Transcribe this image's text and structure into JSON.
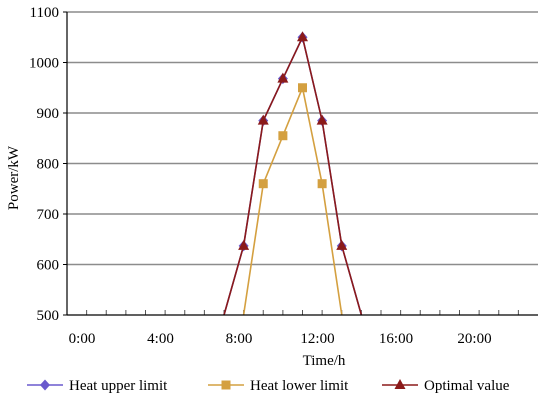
{
  "chart_data": {
    "type": "line",
    "xlabel": "Time/h",
    "ylabel": "Power/kW",
    "xlim": [
      0,
      24
    ],
    "ylim": [
      500,
      1100
    ],
    "x_ticks": [
      0,
      4,
      8,
      12,
      16,
      20
    ],
    "x_tick_labels": [
      "0:00",
      "4:00",
      "8:00",
      "12:00",
      "16:00",
      "20:00"
    ],
    "y_ticks": [
      500,
      600,
      700,
      800,
      900,
      1000,
      1100
    ],
    "y_tick_labels": [
      "500",
      "600",
      "700",
      "800",
      "900",
      "1000",
      "1100"
    ],
    "grid": "horizontal",
    "legend_position": "bottom",
    "series": [
      {
        "name": "Heat upper limit",
        "color": "#6a5acd",
        "marker": "diamond",
        "x": [
          8,
          9,
          10,
          11,
          12,
          13,
          14,
          15
        ],
        "y": [
          500,
          637,
          885,
          968,
          1050,
          885,
          637,
          500
        ]
      },
      {
        "name": "Heat lower limit",
        "color": "#d4a040",
        "marker": "square",
        "x": [
          9,
          10,
          11,
          12,
          13,
          14
        ],
        "y": [
          500,
          760,
          855,
          950,
          760,
          500
        ]
      },
      {
        "name": "Optimal value",
        "color": "#8b1a1a",
        "marker": "triangle",
        "x": [
          8,
          9,
          10,
          11,
          12,
          13,
          14,
          15
        ],
        "y": [
          500,
          637,
          885,
          968,
          1050,
          885,
          637,
          500
        ]
      }
    ]
  }
}
